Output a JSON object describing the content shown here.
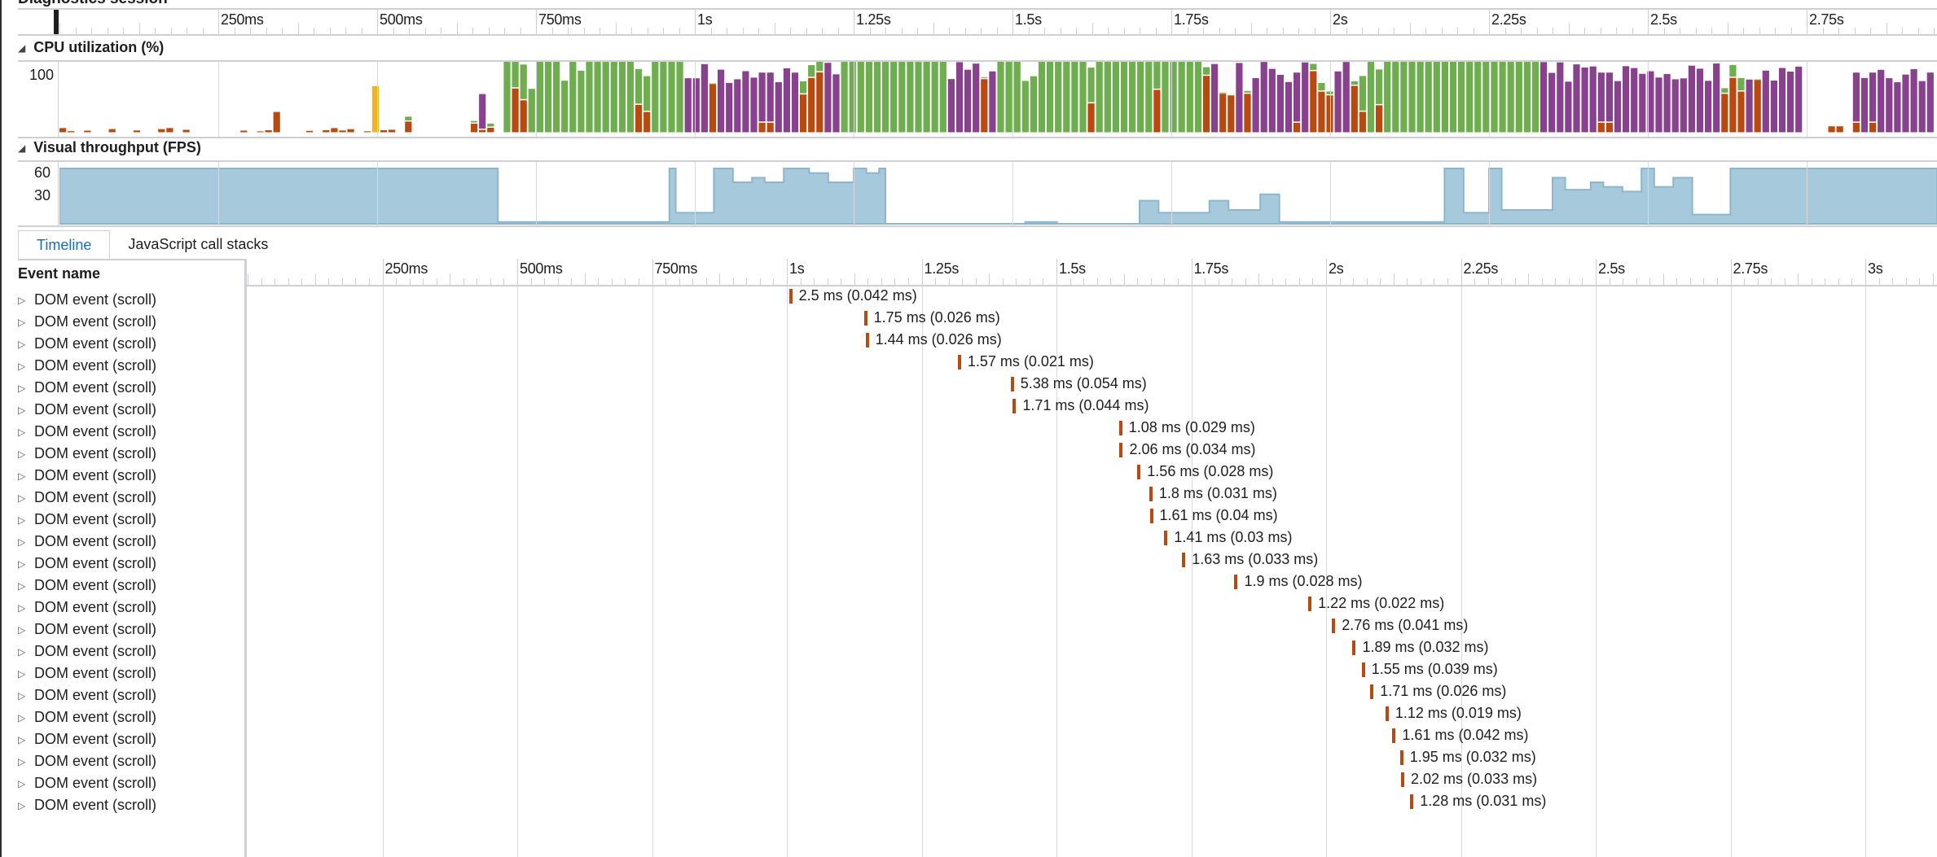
{
  "session": {
    "title": "Diagnostics session"
  },
  "top_ruler": {
    "labels": [
      "250ms",
      "500ms",
      "750ms",
      "1s",
      "1.25s",
      "1.5s",
      "1.75s",
      "2s",
      "2.25s",
      "2.5s",
      "2.75s"
    ],
    "label_times_s": [
      0.25,
      0.5,
      0.75,
      1.0,
      1.25,
      1.5,
      1.75,
      2.0,
      2.25,
      2.5,
      2.75
    ]
  },
  "cpu": {
    "title": "CPU utilization (%)",
    "y_label": "100",
    "colors": {
      "scripting": "#b94a0f",
      "ui_thread": "#88418d",
      "rendering": "#6fae4f",
      "loading": "#f0b323",
      "other": "#7fd3e0"
    }
  },
  "fps": {
    "title": "Visual throughput (FPS)",
    "y_labels": [
      "60",
      "30"
    ],
    "color": "#a7c9dc"
  },
  "tabs": [
    {
      "label": "Timeline",
      "active": true
    },
    {
      "label": "JavaScript call stacks",
      "active": false
    }
  ],
  "events_header": "Event name",
  "bottom_ruler": {
    "labels": [
      "250ms",
      "500ms",
      "750ms",
      "1s",
      "1.25s",
      "1.5s",
      "1.75s",
      "2s",
      "2.25s",
      "2.5s",
      "2.75s",
      "3s"
    ],
    "label_times_s": [
      0.25,
      0.5,
      0.75,
      1.0,
      1.25,
      1.5,
      1.75,
      2.0,
      2.25,
      2.5,
      2.75,
      3.0
    ]
  },
  "events": [
    {
      "name": "DOM event (scroll)",
      "start_s": 1.004,
      "label": "2.5 ms (0.042 ms)"
    },
    {
      "name": "DOM event (scroll)",
      "start_s": 1.143,
      "label": "1.75 ms (0.026 ms)"
    },
    {
      "name": "DOM event (scroll)",
      "start_s": 1.146,
      "label": "1.44 ms (0.026 ms)"
    },
    {
      "name": "DOM event (scroll)",
      "start_s": 1.317,
      "label": "1.57 ms (0.021 ms)"
    },
    {
      "name": "DOM event (scroll)",
      "start_s": 1.415,
      "label": "5.38 ms (0.054 ms)"
    },
    {
      "name": "DOM event (scroll)",
      "start_s": 1.419,
      "label": "1.71 ms (0.044 ms)"
    },
    {
      "name": "DOM event (scroll)",
      "start_s": 1.616,
      "label": "1.08 ms (0.029 ms)"
    },
    {
      "name": "DOM event (scroll)",
      "start_s": 1.617,
      "label": "2.06 ms (0.034 ms)"
    },
    {
      "name": "DOM event (scroll)",
      "start_s": 1.65,
      "label": "1.56 ms (0.028 ms)"
    },
    {
      "name": "DOM event (scroll)",
      "start_s": 1.672,
      "label": "1.8 ms (0.031 ms)"
    },
    {
      "name": "DOM event (scroll)",
      "start_s": 1.673,
      "label": "1.61 ms (0.04 ms)"
    },
    {
      "name": "DOM event (scroll)",
      "start_s": 1.7,
      "label": "1.41 ms (0.03 ms)"
    },
    {
      "name": "DOM event (scroll)",
      "start_s": 1.733,
      "label": "1.63 ms (0.033 ms)"
    },
    {
      "name": "DOM event (scroll)",
      "start_s": 1.83,
      "label": "1.9 ms (0.028 ms)"
    },
    {
      "name": "DOM event (scroll)",
      "start_s": 1.967,
      "label": "1.22 ms (0.022 ms)"
    },
    {
      "name": "DOM event (scroll)",
      "start_s": 2.011,
      "label": "2.76 ms (0.041 ms)"
    },
    {
      "name": "DOM event (scroll)",
      "start_s": 2.049,
      "label": "1.89 ms (0.032 ms)"
    },
    {
      "name": "DOM event (scroll)",
      "start_s": 2.066,
      "label": "1.55 ms (0.039 ms)"
    },
    {
      "name": "DOM event (scroll)",
      "start_s": 2.082,
      "label": "1.71 ms (0.026 ms)"
    },
    {
      "name": "DOM event (scroll)",
      "start_s": 2.11,
      "label": "1.12 ms (0.019 ms)"
    },
    {
      "name": "DOM event (scroll)",
      "start_s": 2.123,
      "label": "1.61 ms (0.042 ms)"
    },
    {
      "name": "DOM event (scroll)",
      "start_s": 2.137,
      "label": "1.95 ms (0.032 ms)"
    },
    {
      "name": "DOM event (scroll)",
      "start_s": 2.139,
      "label": "2.02 ms (0.033 ms)"
    },
    {
      "name": "DOM event (scroll)",
      "start_s": 2.156,
      "label": "1.28 ms (0.031 ms)"
    }
  ]
}
